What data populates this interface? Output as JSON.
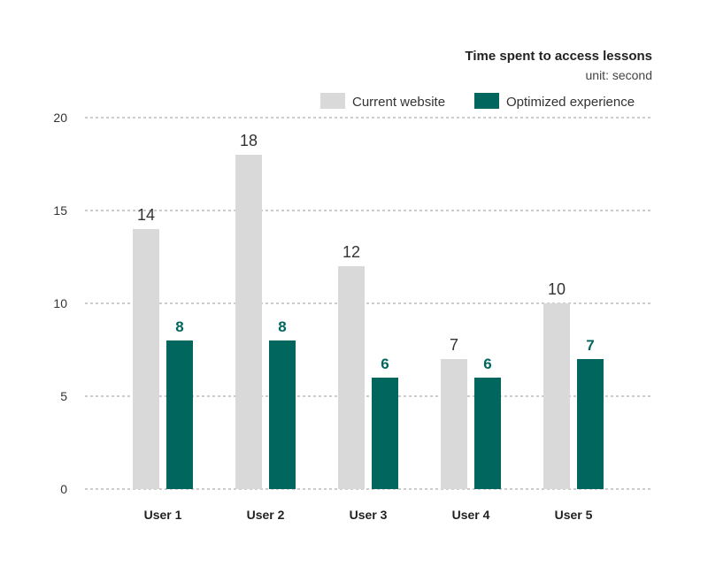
{
  "chart_data": {
    "type": "bar",
    "title": "Time spent to access lessons",
    "subtitle": "unit: second",
    "categories": [
      "User 1",
      "User 2",
      "User 3",
      "User 4",
      "User 5"
    ],
    "series": [
      {
        "name": "Current website",
        "values": [
          14,
          18,
          12,
          7,
          10
        ],
        "color": "#d9d9d9"
      },
      {
        "name": "Optimized experience",
        "values": [
          8,
          8,
          6,
          6,
          7
        ],
        "color": "#00665e"
      }
    ],
    "ylim": [
      0,
      20
    ],
    "yticks": [
      0,
      5,
      10,
      15,
      20
    ],
    "grid": true,
    "legend_position": "top-right",
    "xlabel": "",
    "ylabel": ""
  }
}
